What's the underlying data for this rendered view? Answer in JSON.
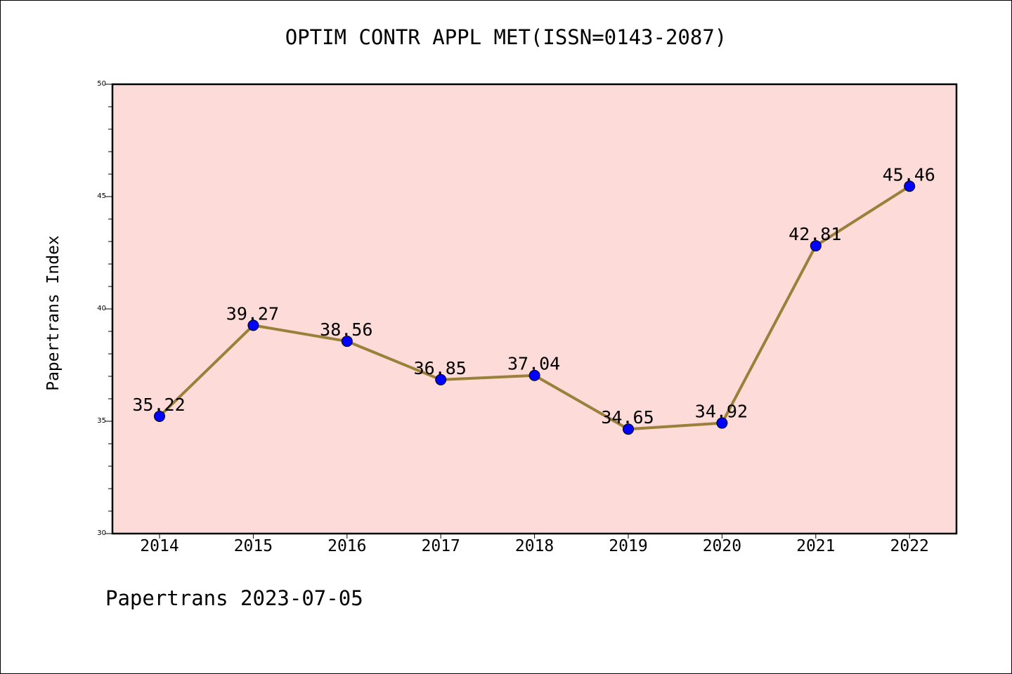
{
  "chart_data": {
    "type": "line",
    "title": "OPTIM CONTR APPL MET(ISSN=0143-2087)",
    "xlabel": "",
    "ylabel": "Papertrans Index",
    "categories": [
      "2014",
      "2015",
      "2016",
      "2017",
      "2018",
      "2019",
      "2020",
      "2021",
      "2022"
    ],
    "series": [
      {
        "values": [
          35.22,
          39.27,
          38.56,
          36.85,
          37.04,
          34.65,
          34.92,
          42.81,
          45.46
        ]
      }
    ],
    "data_labels": [
      "35.22",
      "39.27",
      "38.56",
      "36.85",
      "37.04",
      "34.65",
      "34.92",
      "42.81",
      "45.46"
    ],
    "ylim": [
      30,
      50
    ],
    "yticks": [
      "30",
      "35",
      "40",
      "45",
      "50"
    ],
    "grid": false,
    "legend": "none"
  },
  "footer": {
    "text": "Papertrans 2023-07-05"
  },
  "colors": {
    "plot_background": "#fddbd8",
    "line": "#9a803a",
    "marker": "#0000ff",
    "axes": "#000000"
  }
}
